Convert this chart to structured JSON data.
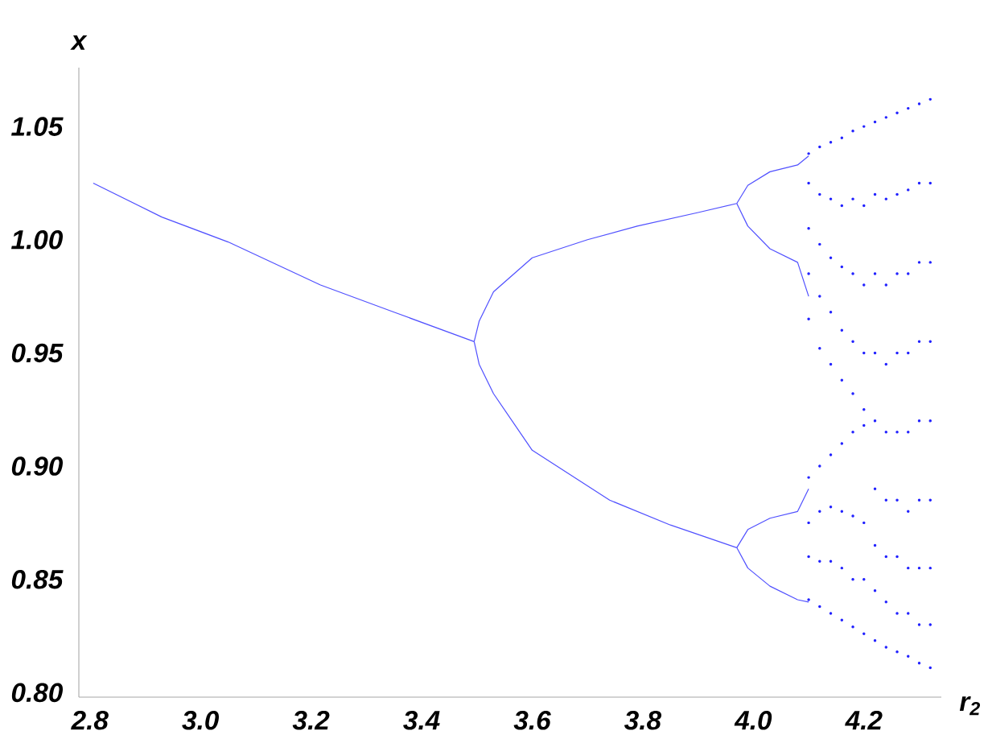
{
  "chart_data": {
    "type": "scatter",
    "xlabel": "r$_{2}$",
    "ylabel": "x",
    "xlim": [
      2.78,
      4.34
    ],
    "ylim": [
      0.798,
      1.076
    ],
    "xticks": [
      {
        "value": 2.8,
        "label": "2.8"
      },
      {
        "value": 3.0,
        "label": "3.0"
      },
      {
        "value": 3.2,
        "label": "3.2"
      },
      {
        "value": 3.4,
        "label": "3.4"
      },
      {
        "value": 3.6,
        "label": "3.6"
      },
      {
        "value": 3.8,
        "label": "3.8"
      },
      {
        "value": 4.0,
        "label": "4.0"
      },
      {
        "value": 4.2,
        "label": "4.2"
      }
    ],
    "yticks": [
      {
        "value": 0.8,
        "label": "0.80"
      },
      {
        "value": 0.85,
        "label": "0.85"
      },
      {
        "value": 0.9,
        "label": "0.90"
      },
      {
        "value": 0.95,
        "label": "0.95"
      },
      {
        "value": 1.0,
        "label": "1.00"
      },
      {
        "value": 1.05,
        "label": "1.05"
      }
    ],
    "grid": false,
    "series": [
      {
        "type": "line",
        "color": "#5050ff",
        "x": [
          2.806,
          2.93,
          3.05,
          3.217,
          3.35,
          3.495
        ],
        "values": [
          1.025,
          1.01,
          0.999,
          0.98,
          0.968,
          0.955
        ]
      },
      {
        "type": "line",
        "color": "#5050ff",
        "x": [
          3.495,
          3.504,
          3.53,
          3.6,
          3.7,
          3.79,
          3.9,
          3.97
        ],
        "values": [
          0.955,
          0.964,
          0.977,
          0.992,
          1.0,
          1.006,
          1.012,
          1.016
        ]
      },
      {
        "type": "line",
        "color": "#5050ff",
        "x": [
          3.495,
          3.504,
          3.53,
          3.6,
          3.74,
          3.85,
          3.97
        ],
        "values": [
          0.955,
          0.945,
          0.932,
          0.907,
          0.885,
          0.874,
          0.864
        ]
      },
      {
        "type": "line",
        "color": "#5050ff",
        "x": [
          3.97,
          3.99,
          4.03,
          4.08,
          4.1
        ],
        "values": [
          1.016,
          1.024,
          1.03,
          1.033,
          1.037
        ]
      },
      {
        "type": "line",
        "color": "#5050ff",
        "x": [
          3.97,
          3.99,
          4.03,
          4.08,
          4.1
        ],
        "values": [
          1.016,
          1.006,
          0.996,
          0.99,
          0.975
        ]
      },
      {
        "type": "line",
        "color": "#5050ff",
        "x": [
          3.97,
          3.99,
          4.03,
          4.08,
          4.1
        ],
        "values": [
          0.864,
          0.872,
          0.877,
          0.88,
          0.89
        ]
      },
      {
        "type": "line",
        "color": "#5050ff",
        "x": [
          3.97,
          3.99,
          4.03,
          4.08,
          4.1
        ],
        "values": [
          0.864,
          0.855,
          0.847,
          0.841,
          0.84
        ]
      },
      {
        "color": "#2020ff",
        "marker": "circle",
        "x": [
          4.1,
          4.1,
          4.1,
          4.1,
          4.1,
          4.1,
          4.1,
          4.1,
          4.1,
          4.12,
          4.12,
          4.12,
          4.12,
          4.12,
          4.12,
          4.12,
          4.12,
          4.12,
          4.14,
          4.14,
          4.14,
          4.14,
          4.14,
          4.14,
          4.14,
          4.14,
          4.14,
          4.16,
          4.16,
          4.16,
          4.16,
          4.16,
          4.16,
          4.16,
          4.16,
          4.16,
          4.18,
          4.18,
          4.18,
          4.18,
          4.18,
          4.18,
          4.18,
          4.18,
          4.18,
          4.2,
          4.2,
          4.2,
          4.2,
          4.2,
          4.2,
          4.2,
          4.2,
          4.2,
          4.22,
          4.22,
          4.22,
          4.22,
          4.22,
          4.22,
          4.22,
          4.22,
          4.22,
          4.24,
          4.24,
          4.24,
          4.24,
          4.24,
          4.24,
          4.24,
          4.24,
          4.24,
          4.26,
          4.26,
          4.26,
          4.26,
          4.26,
          4.26,
          4.26,
          4.26,
          4.26,
          4.28,
          4.28,
          4.28,
          4.28,
          4.28,
          4.28,
          4.28,
          4.28,
          4.28,
          4.3,
          4.3,
          4.3,
          4.3,
          4.3,
          4.3,
          4.3,
          4.3,
          4.3,
          4.32,
          4.32,
          4.32,
          4.32,
          4.32,
          4.32,
          4.32,
          4.32,
          4.32
        ],
        "values": [
          1.038,
          1.025,
          1.005,
          0.985,
          0.965,
          0.895,
          0.875,
          0.86,
          0.841,
          1.041,
          1.02,
          0.998,
          0.975,
          0.952,
          0.9,
          0.88,
          0.858,
          0.838,
          1.043,
          1.018,
          0.992,
          0.968,
          0.945,
          0.905,
          0.882,
          0.858,
          0.835,
          1.045,
          1.015,
          0.988,
          0.96,
          0.938,
          0.91,
          0.88,
          0.855,
          0.832,
          1.048,
          1.018,
          0.985,
          0.955,
          0.932,
          0.915,
          0.878,
          0.85,
          0.829,
          1.05,
          1.015,
          0.98,
          0.95,
          0.925,
          0.918,
          0.875,
          0.85,
          0.826,
          1.052,
          1.02,
          0.985,
          0.95,
          0.92,
          0.89,
          0.865,
          0.845,
          0.823,
          1.054,
          1.018,
          0.98,
          0.945,
          0.915,
          0.885,
          0.86,
          0.84,
          0.82,
          1.056,
          1.02,
          0.985,
          0.95,
          0.915,
          0.885,
          0.86,
          0.835,
          0.818,
          1.058,
          1.022,
          0.985,
          0.95,
          0.915,
          0.88,
          0.855,
          0.835,
          0.816,
          1.06,
          1.025,
          0.99,
          0.955,
          0.92,
          0.885,
          0.855,
          0.83,
          0.813,
          1.062,
          1.025,
          0.99,
          0.955,
          0.92,
          0.885,
          0.855,
          0.83,
          0.811
        ]
      }
    ]
  }
}
